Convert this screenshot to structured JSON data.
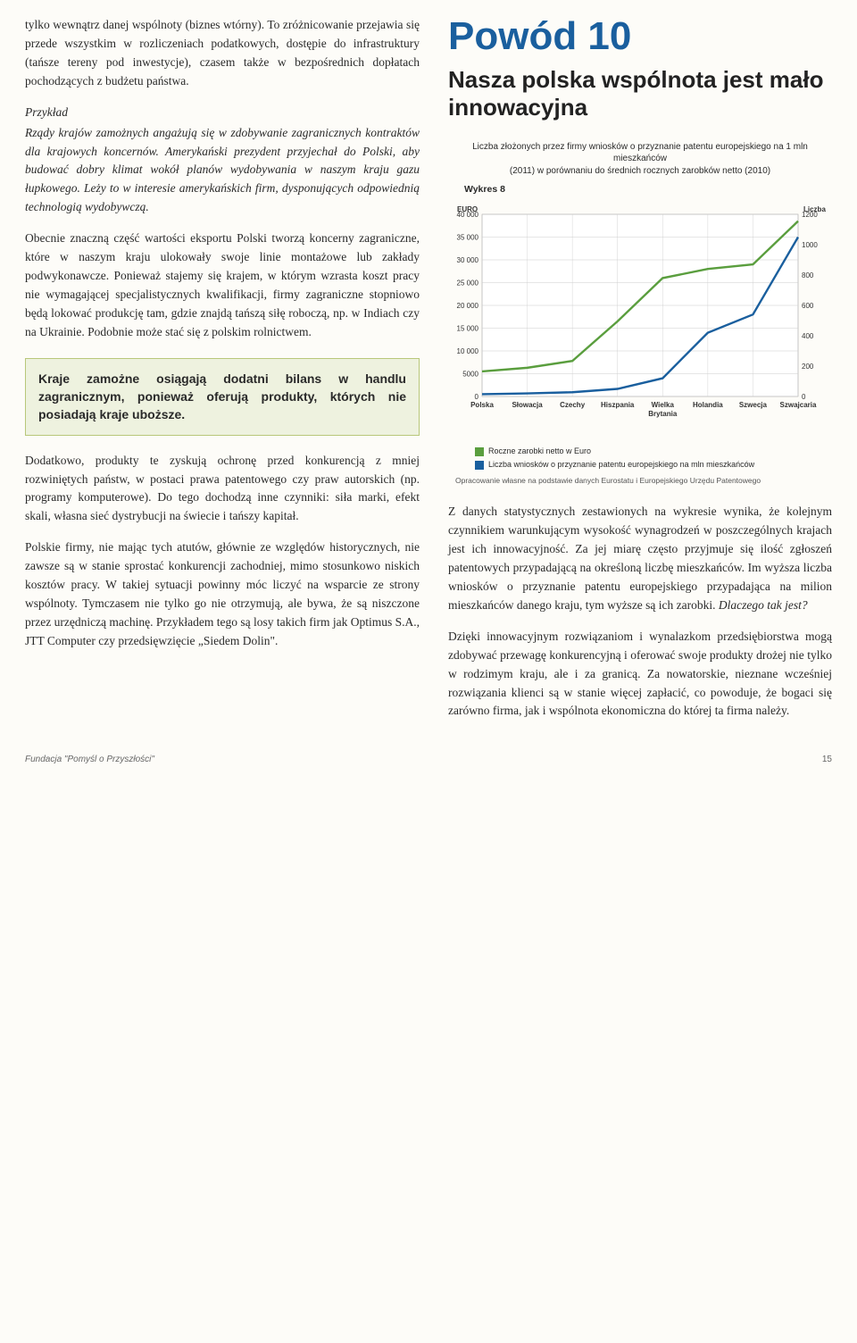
{
  "left": {
    "p1": "tylko wewnątrz danej wspólnoty (biznes wtórny). To zróżnicowanie przejawia się przede wszystkim w rozliczeniach podatkowych, dostępie do infrastruktury (tańsze tereny pod inwestycje), czasem także w bezpośrednich dopłatach pochodzących z budżetu państwa.",
    "example_label": "Przykład",
    "example_body": "Rządy krajów zamożnych angażują się w zdobywanie zagranicznych kontraktów dla krajowych koncernów. Amerykański prezydent przyjechał do Polski, aby budować dobry klimat wokół planów wydobywania w naszym kraju gazu łupkowego. Leży to w interesie amerykańskich firm, dysponujących odpowiednią technologią wydobywczą.",
    "p2": "Obecnie znaczną część wartości eksportu Polski tworzą koncerny zagraniczne, które w naszym kraju ulokowały swoje linie montażowe lub zakłady podwykonawcze. Ponieważ stajemy się krajem, w którym wzrasta koszt pracy nie wymagającej specjalistycznych kwalifikacji, firmy zagraniczne stopniowo będą lokować produkcję tam, gdzie znajdą tańszą siłę roboczą, np. w Indiach czy na Ukrainie. Podobnie może stać się z polskim rolnictwem.",
    "callout": "Kraje zamożne osiągają dodatni bilans w handlu zagranicznym, ponieważ oferują produkty, których nie posiadają kraje uboższe.",
    "p3": "Dodatkowo, produkty te zyskują ochronę przed konkurencją z mniej rozwiniętych państw, w postaci prawa patentowego czy praw autorskich (np. programy komputerowe). Do tego dochodzą inne czynniki: siła marki, efekt skali, własna sieć dystrybucji na świecie i tańszy kapitał.",
    "p4": "Polskie firmy, nie mając tych atutów, głównie ze względów historycznych, nie zawsze są w stanie sprostać konkurencji zachodniej, mimo stosunkowo niskich kosztów pracy. W takiej sytuacji powinny móc liczyć na wsparcie ze strony wspólnoty. Tymczasem nie tylko go nie otrzymują, ale bywa, że są niszczone przez urzędniczą machinę. Przykładem tego są losy takich firm jak Optimus S.A., JTT Computer czy przedsięwzięcie „Siedem Dolin\"."
  },
  "right": {
    "title": "Powód 10",
    "subtitle": "Nasza polska wspólnota jest mało innowacyjna",
    "chart_caption_1": "Liczba złożonych przez firmy wniosków o przyznanie patentu europejskiego na 1 mln mieszkańców",
    "chart_caption_2": "(2011) w porównaniu do średnich rocznych zarobków netto (2010)",
    "wykres": "Wykres 8",
    "chart": {
      "type": "dual-axis-line",
      "y_left_label": "EURO",
      "y_right_label": "Liczba",
      "y_left_ticks": [
        0,
        5000,
        10000,
        15000,
        20000,
        25000,
        30000,
        35000,
        40000
      ],
      "y_left_max": 40000,
      "y_right_ticks": [
        0,
        200,
        400,
        600,
        800,
        1000,
        1200
      ],
      "y_right_max": 1200,
      "categories": [
        "Polska",
        "Słowacja",
        "Czechy",
        "Hiszpania",
        "Wielka Brytania",
        "Holandia",
        "Szwecja",
        "Szwajcaria"
      ],
      "series1": {
        "name": "Roczne zarobki netto w Euro",
        "color": "#5a9e3e",
        "values": [
          5500,
          6300,
          7800,
          16500,
          26000,
          28000,
          29000,
          38500
        ]
      },
      "series2": {
        "name": "Liczba wniosków o przyznanie patentu europejskiego na mln mieszkańców",
        "color": "#1a5f9e",
        "values": [
          15,
          20,
          28,
          50,
          120,
          420,
          540,
          1050
        ]
      },
      "grid_color": "#cccccc",
      "bg": "#ffffff",
      "axis_font": 8,
      "label_font": 8
    },
    "source": "Opracowanie własne na podstawie danych Eurostatu i Europejskiego Urzędu Patentowego",
    "p1a": "Z danych statystycznych zestawionych na wykresie wynika, że kolejnym czynnikiem warunkującym wysokość wynagrodzeń w poszczególnych krajach jest ich innowacyjność. Za jej miarę często przyjmuje się ilość zgłoszeń patentowych przypadającą na określoną liczbę mieszkańców. Im wyższa liczba wniosków o przyznanie patentu europejskiego przypadająca na milion mieszkańców danego kraju, tym wyższe są ich zarobki. ",
    "p1b": "Dlaczego tak jest?",
    "p2": "Dzięki innowacyjnym rozwiązaniom i wynalazkom przedsiębiorstwa mogą zdobywać przewagę konkurencyjną i oferować swoje produkty drożej nie tylko w rodzimym kraju, ale i za granicą. Za nowatorskie, nieznane wcześniej rozwiązania klienci są w stanie więcej zapłacić, co powoduje, że bogaci się zarówno firma, jak i wspólnota ekonomiczna do której ta firma należy."
  },
  "footer": {
    "left": "Fundacja \"Pomyśl o Przyszłości\"",
    "page": "15"
  }
}
